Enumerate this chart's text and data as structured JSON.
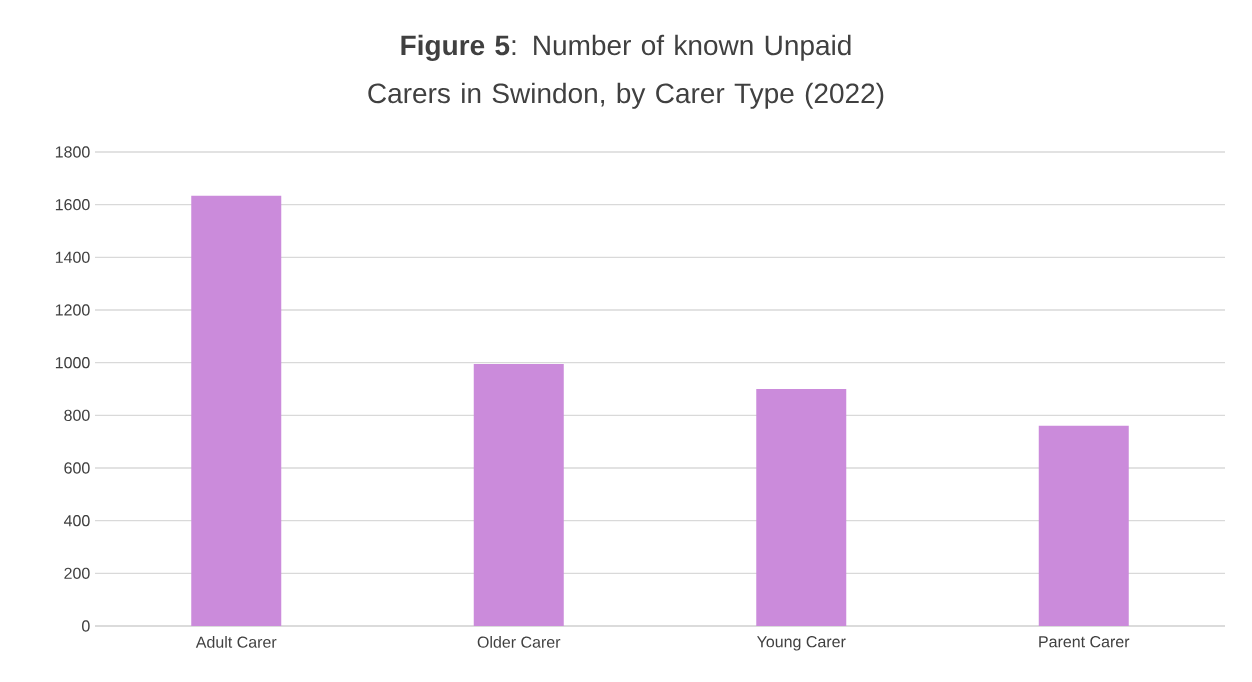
{
  "chart_data": {
    "type": "bar",
    "title": "**Figure 5**: Number of known Unpaid Carers in Swindon, by Carer Type (2022)",
    "categories": [
      "Adult Carer",
      "Older Carer",
      "Young Carer",
      "Parent Carer"
    ],
    "values": [
      1635,
      995,
      900,
      760
    ],
    "color": "#cb8bdb",
    "ylim": [
      0,
      1800
    ],
    "yticks": [
      0,
      200,
      400,
      600,
      800,
      1000,
      1200,
      1400,
      1600,
      1800
    ],
    "grid": "y"
  }
}
